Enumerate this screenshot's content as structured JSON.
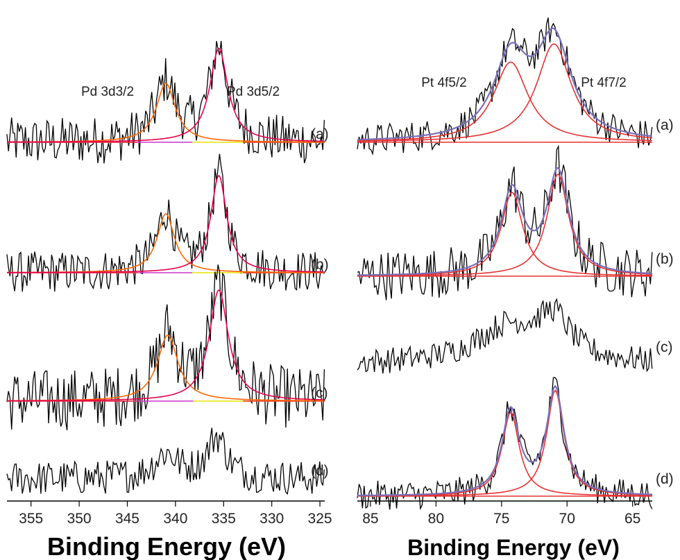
{
  "chart_data": [
    {
      "type": "line",
      "panel": "left",
      "xlabel": "Binding Energy (eV)",
      "xlim": [
        357.5,
        324.5
      ],
      "x_ticks": [
        355,
        350,
        345,
        340,
        335,
        330,
        325
      ],
      "annotations": [
        "Pd 3d3/2",
        "Pd 3d5/2"
      ],
      "traces": [
        {
          "label": "(a)",
          "peaks": [
            {
              "center": 341.0,
              "height": 0.85,
              "width": 1.2
            },
            {
              "center": 335.5,
              "height": 1.35,
              "width": 1.15
            }
          ],
          "noise": 0.35,
          "fitted": true
        },
        {
          "label": "(b)",
          "peaks": [
            {
              "center": 341.0,
              "height": 0.85,
              "width": 1.1
            },
            {
              "center": 335.5,
              "height": 1.4,
              "width": 1.0
            }
          ],
          "noise": 0.3,
          "fitted": true
        },
        {
          "label": "(c)",
          "peaks": [
            {
              "center": 340.8,
              "height": 0.95,
              "width": 1.3
            },
            {
              "center": 335.5,
              "height": 1.6,
              "width": 1.2
            }
          ],
          "noise": 0.45,
          "fitted": true
        },
        {
          "label": "(d)",
          "peaks": [
            {
              "center": 341.0,
              "height": 0.35,
              "width": 1.5
            },
            {
              "center": 335.7,
              "height": 0.6,
              "width": 1.2
            }
          ],
          "noise": 0.25,
          "fitted": false
        }
      ],
      "fit_colors": {
        "envelope": "#ff6600",
        "peak": "#e8004a",
        "baseline_low": "#cc33cc",
        "baseline_high": "#e6e600"
      }
    },
    {
      "type": "line",
      "panel": "right",
      "xlabel": "Binding Energy (eV)",
      "xlim": [
        86,
        63.5
      ],
      "x_ticks": [
        85,
        80,
        75,
        70,
        65
      ],
      "annotations": [
        "Pt 4f5/2",
        "Pt 4f7/2"
      ],
      "traces": [
        {
          "label": "(a)",
          "peaks": [
            {
              "center": 74.3,
              "height": 1.1,
              "width": 1.6
            },
            {
              "center": 71.0,
              "height": 1.35,
              "width": 1.6
            }
          ],
          "noise": 0.22,
          "fitted": true
        },
        {
          "label": "(b)",
          "peaks": [
            {
              "center": 74.2,
              "height": 1.15,
              "width": 1.0
            },
            {
              "center": 70.7,
              "height": 1.4,
              "width": 1.0
            }
          ],
          "noise": 0.35,
          "fitted": true
        },
        {
          "label": "(c)",
          "peaks": [
            {
              "center": 74.5,
              "height": 0.5,
              "width": 3.0
            },
            {
              "center": 71.0,
              "height": 0.55,
              "width": 1.5
            }
          ],
          "noise": 0.18,
          "fitted": false
        },
        {
          "label": "(d)",
          "peaks": [
            {
              "center": 74.3,
              "height": 1.15,
              "width": 0.8
            },
            {
              "center": 70.9,
              "height": 1.45,
              "width": 0.8
            }
          ],
          "noise": 0.2,
          "fitted": true
        }
      ],
      "fit_colors": {
        "envelope": "#7a6fb8",
        "peak": "#e83030",
        "baseline_low": "#e83030",
        "baseline_high": "#e83030"
      }
    }
  ]
}
